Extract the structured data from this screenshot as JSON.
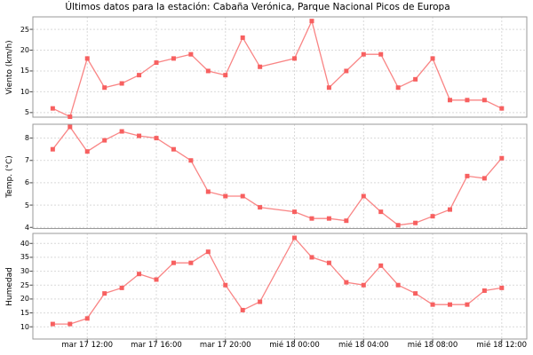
{
  "title": "Últimos datos para la estación: Cabaña Verónica, Parque Nacional Picos de Europa",
  "chart_data": {
    "type": "line",
    "x_unit": "hours from mar 17 10:00 (hour 13 = 23:00 missing)",
    "x": [
      0,
      1,
      2,
      3,
      4,
      5,
      6,
      7,
      8,
      9,
      10,
      11,
      12,
      14,
      15,
      16,
      17,
      18,
      19,
      20,
      21,
      22,
      23,
      24,
      25,
      26
    ],
    "x_domain": [
      -1.15,
      27.45
    ],
    "x_ticks": [
      {
        "pos": 2,
        "label": "mar 17 12:00"
      },
      {
        "pos": 6,
        "label": "mar 17 16:00"
      },
      {
        "pos": 10,
        "label": "mar 17 20:00"
      },
      {
        "pos": 14,
        "label": "mié 18 00:00"
      },
      {
        "pos": 18,
        "label": "mié 18 04:00"
      },
      {
        "pos": 22,
        "label": "mié 18 08:00"
      },
      {
        "pos": 26,
        "label": "mié 18 12:00"
      }
    ],
    "grid": true,
    "legend": "none",
    "panels": [
      {
        "name": "viento",
        "ylabel": "Viento (km/h)",
        "values": [
          6,
          4,
          18,
          11,
          12,
          14,
          17,
          18,
          19,
          15,
          14,
          23,
          16,
          18,
          27,
          11,
          15,
          19,
          19,
          11,
          13,
          18,
          8,
          8,
          8,
          6
        ],
        "yticks": [
          5,
          10,
          15,
          20,
          25
        ],
        "ylim": [
          3.9,
          28.0
        ]
      },
      {
        "name": "temp",
        "ylabel": "Temp. (°C)",
        "values": [
          7.5,
          8.5,
          7.4,
          7.9,
          8.3,
          8.1,
          8.0,
          7.5,
          7.0,
          5.6,
          5.4,
          5.4,
          4.9,
          4.7,
          4.4,
          4.4,
          4.3,
          5.4,
          4.7,
          4.1,
          4.2,
          4.5,
          4.8,
          6.3,
          6.2,
          7.1
        ],
        "yticks": [
          4,
          5,
          6,
          7,
          8
        ],
        "ylim": [
          3.95,
          8.62
        ]
      },
      {
        "name": "humedad",
        "ylabel": "Humedad",
        "values": [
          11,
          11,
          13,
          22,
          24,
          29,
          27,
          33,
          33,
          37,
          25,
          16,
          19,
          42,
          35,
          33,
          26,
          25,
          32,
          25,
          22,
          18,
          18,
          18,
          23,
          24
        ],
        "yticks": [
          10,
          15,
          20,
          25,
          30,
          35,
          40
        ],
        "ylim": [
          5.6,
          43.6
        ]
      }
    ]
  },
  "colors": {
    "line": "#f98585",
    "marker": "#f76060",
    "grid": "#d9d9d9",
    "frame": "#9a9a9a",
    "tick": "#444444",
    "text": "#000000",
    "background": "#ffffff"
  }
}
